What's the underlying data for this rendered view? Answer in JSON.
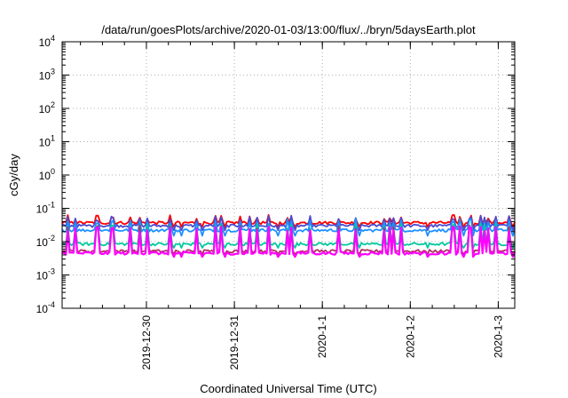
{
  "chart_data": {
    "type": "line",
    "title": "/data/run/goesPlots/archive/2020-01-03/13:00/flux/../bryn/5daysEarth.plot",
    "xlabel": "Coordinated Universal Time (UTC)",
    "ylabel": "cGy/day",
    "y_scale": "log",
    "ylim": [
      0.0001,
      10000
    ],
    "y_ticks": [
      {
        "base": "10",
        "exp": "-4",
        "value": 0.0001
      },
      {
        "base": "10",
        "exp": "-3",
        "value": 0.001
      },
      {
        "base": "10",
        "exp": "-2",
        "value": 0.01
      },
      {
        "base": "10",
        "exp": "-1",
        "value": 0.1
      },
      {
        "base": "10",
        "exp": "0",
        "value": 1
      },
      {
        "base": "10",
        "exp": "1",
        "value": 10
      },
      {
        "base": "10",
        "exp": "2",
        "value": 100
      },
      {
        "base": "10",
        "exp": "3",
        "value": 1000
      },
      {
        "base": "10",
        "exp": "4",
        "value": 10000
      }
    ],
    "xlim": [
      "2019-12-29T13:00",
      "2020-01-03T16:30"
    ],
    "x_ticks": [
      {
        "label": "2019-12-30",
        "value": "2019-12-30T12:00"
      },
      {
        "label": "2019-12-31",
        "value": "2019-12-31T12:00"
      },
      {
        "label": "2020-1-1",
        "value": "2020-01-01T12:00"
      },
      {
        "label": "2020-1-2",
        "value": "2020-01-02T12:00"
      },
      {
        "label": "2020-1-3",
        "value": "2020-01-03T12:00"
      }
    ],
    "grid": true,
    "legend": "none",
    "series": [
      {
        "color": "#ff0000",
        "base": 0.037,
        "spike": 0.058,
        "dip": 0.028
      },
      {
        "color": "#4b4bd0",
        "base": 0.03,
        "spike": 0.055,
        "dip": 0.022
      },
      {
        "color": "#1e90ff",
        "base": 0.022,
        "spike": 0.045,
        "dip": 0.015
      },
      {
        "color": "#00c8a0",
        "base": 0.0085,
        "spike": 0.032,
        "dip": 0.0065
      },
      {
        "color": "#b03060",
        "base": 0.0052,
        "spike": 0.028,
        "dip": 0.0042
      },
      {
        "color": "#ff00ff",
        "base": 0.0045,
        "spike": 0.026,
        "dip": 0.0035
      }
    ]
  }
}
